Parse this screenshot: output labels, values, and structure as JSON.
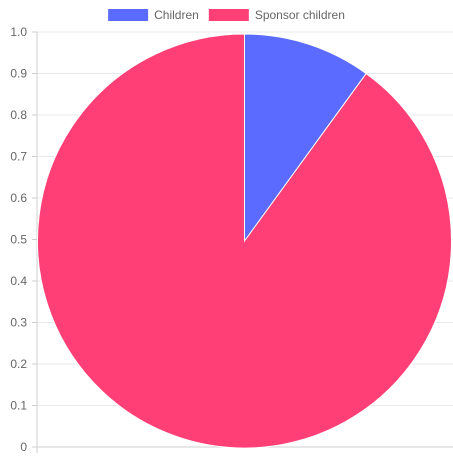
{
  "chart_data": {
    "type": "pie",
    "legend": {
      "position": "top",
      "items": [
        "Children",
        "Sponsor children"
      ]
    },
    "series": [
      {
        "name": "Children",
        "value": 10,
        "color": "#5b6bff"
      },
      {
        "name": "Sponsor children",
        "value": 90,
        "color": "#ff3f76"
      }
    ],
    "y_axis": {
      "range": [
        0,
        1.0
      ],
      "ticks": [
        "0",
        "0.1",
        "0.2",
        "0.3",
        "0.4",
        "0.5",
        "0.6",
        "0.7",
        "0.8",
        "0.9",
        "1.0"
      ]
    },
    "grid": true
  }
}
